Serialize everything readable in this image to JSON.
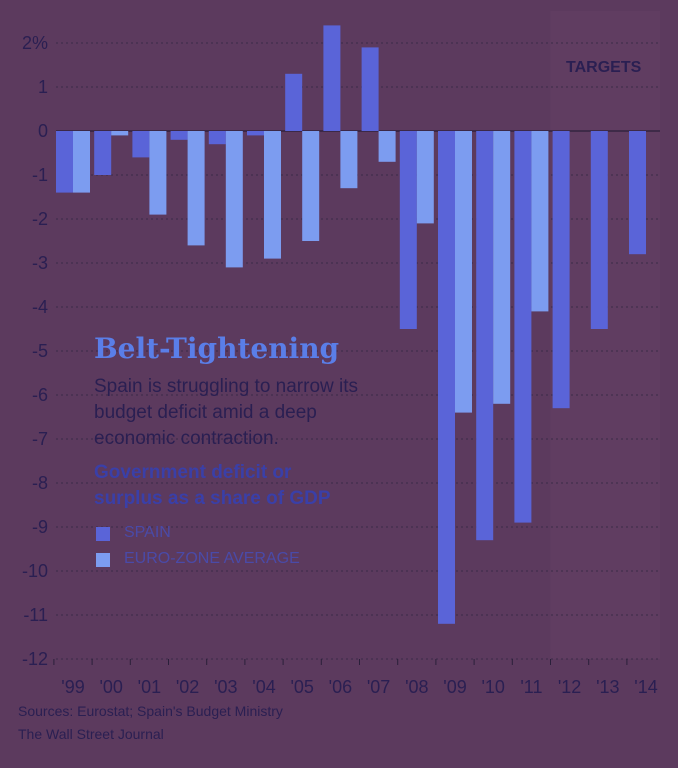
{
  "chart_data": {
    "type": "bar",
    "title": "Belt-Tightening",
    "description": "Spain is struggling to narrow its budget deficit amid a deep economic contraction.",
    "subtitle": "Government deficit or surplus as a share of GDP",
    "categories": [
      "'99",
      "'00",
      "'01",
      "'02",
      "'03",
      "'04",
      "'05",
      "'06",
      "'07",
      "'08",
      "'09",
      "'10",
      "'11",
      "'12",
      "'13",
      "'14"
    ],
    "series": [
      {
        "name": "SPAIN",
        "color": "#5a64d8",
        "values": [
          -1.4,
          -1.0,
          -0.6,
          -0.2,
          -0.3,
          -0.1,
          1.3,
          2.4,
          1.9,
          -4.5,
          -11.2,
          -9.3,
          -8.9,
          -6.3,
          -4.5,
          -2.8
        ]
      },
      {
        "name": "EURO-ZONE AVERAGE",
        "color": "#7c9cf0",
        "values": [
          -1.4,
          -0.1,
          -1.9,
          -2.6,
          -3.1,
          -2.9,
          -2.5,
          -1.3,
          -0.7,
          -2.1,
          -6.4,
          -6.2,
          -4.1,
          null,
          null,
          null
        ]
      }
    ],
    "ylim": [
      -12,
      2.5
    ],
    "yticks": [
      2,
      1,
      0,
      -1,
      -2,
      -3,
      -4,
      -5,
      -6,
      -7,
      -8,
      -9,
      -10,
      -11,
      -12
    ],
    "ytick_labels": [
      "2%",
      "1",
      "0",
      "-1",
      "-2",
      "-3",
      "-4",
      "-5",
      "-6",
      "-7",
      "-8",
      "-9",
      "-10",
      "-11",
      "-12"
    ],
    "annotation": "TARGETS",
    "target_categories": [
      "'12",
      "'13",
      "'14"
    ],
    "grid": true
  },
  "footer": {
    "sources": "Sources: Eurostat; Spain's Budget Ministry",
    "publisher": "The Wall Street Journal"
  },
  "colors": {
    "background": "#5c3a5e",
    "spain": "#5a64d8",
    "eurozone": "#7c9cf0",
    "title": "#5a7ee8",
    "text": "#2a1f52",
    "grid": "#3a2a48"
  }
}
